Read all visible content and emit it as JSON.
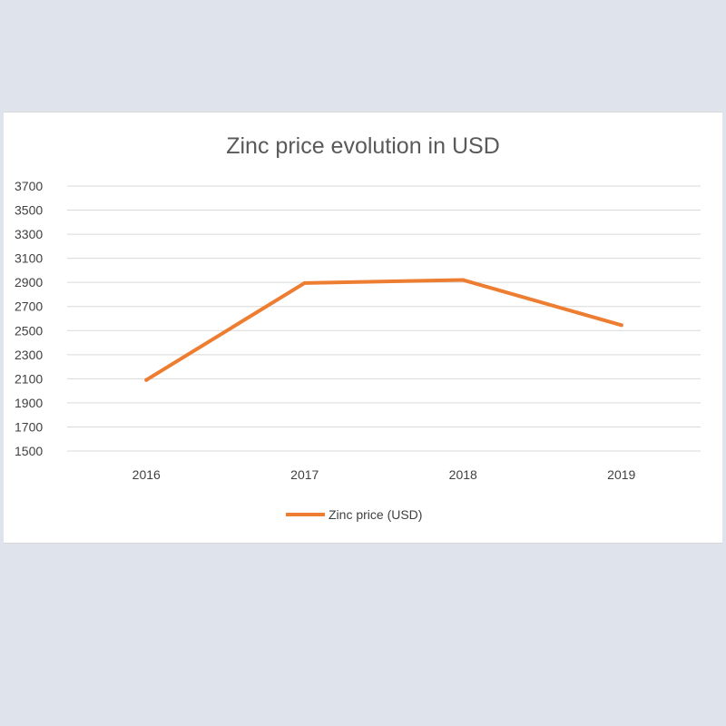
{
  "chart_data": {
    "type": "line",
    "title": "Zinc price evolution in USD",
    "xlabel": "",
    "ylabel": "",
    "categories": [
      "2016",
      "2017",
      "2018",
      "2019"
    ],
    "series": [
      {
        "name": "Zinc price (USD)",
        "values": [
          2090,
          2895,
          2920,
          2545
        ],
        "color": "#ed7d31"
      }
    ],
    "yticks": [
      1500,
      1700,
      1900,
      2100,
      2300,
      2500,
      2700,
      2900,
      3100,
      3300,
      3500,
      3700
    ],
    "ylim": [
      1500,
      3700
    ],
    "grid": true,
    "legend": "bottom"
  }
}
